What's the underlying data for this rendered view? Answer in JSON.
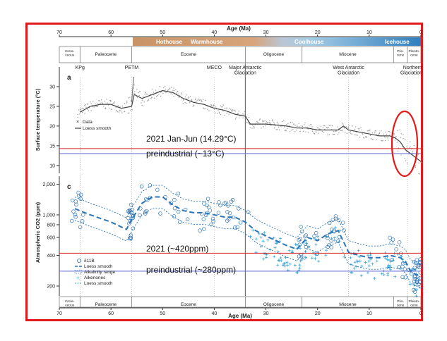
{
  "colors": {
    "frame": "#e21a1a",
    "ref_red": "#d81e1e",
    "ref_blue": "#5b63d6",
    "boron": "#2b74b8",
    "loess_c": "#2b74b8",
    "alk": "#39a6d8",
    "temp": "#555555"
  },
  "chart_data": [
    {
      "panel": "a",
      "type": "scatter",
      "xlabel": "Age (Ma)",
      "xlim": [
        70,
        0
      ],
      "x_ticks": [
        "70",
        "60",
        "50",
        "40",
        "30",
        "20",
        "10",
        "0"
      ],
      "ylabel": "Surface temperature (°C)",
      "ylim": [
        8,
        35
      ],
      "y_ticks": [
        "10",
        "15",
        "20",
        "25",
        "30"
      ],
      "climate_states": [
        "Hothouse",
        "Warmhouse",
        "Coolhouse",
        "Icehouse"
      ],
      "epochs_top": [
        "Creta-\nceous",
        "Paleocene",
        "Eocene",
        "Oligocene",
        "Miocene",
        "Plio-\ncene",
        "Pleisto-\ncene"
      ],
      "events": [
        "KPg",
        "PETM",
        "MECO",
        "Major Antarctic\nGlaciation",
        "West Antarctic\nGlaciation",
        "Northern\nGlaciation"
      ],
      "legend": [
        "Data",
        "Loess smooth"
      ],
      "series": [
        {
          "name": "Loess smooth",
          "x": [
            66,
            64,
            62,
            60,
            58,
            56,
            55.5,
            54,
            52,
            50,
            48,
            46,
            44,
            42,
            40,
            38,
            36,
            34,
            33,
            30,
            26,
            24,
            22,
            20,
            18,
            16,
            15,
            14,
            12,
            10,
            8,
            6,
            5,
            4,
            3,
            2,
            1,
            0
          ],
          "y": [
            23.5,
            25,
            25.5,
            25.5,
            24.5,
            25,
            28,
            27,
            28,
            29,
            28.5,
            27,
            26,
            25.5,
            24.5,
            24,
            23,
            22.5,
            20.5,
            20.5,
            20,
            19.5,
            19.5,
            19,
            19,
            19,
            20,
            19,
            18.5,
            18,
            17.5,
            17.5,
            17,
            16,
            14,
            13,
            12,
            11
          ]
        }
      ],
      "annotations": [
        {
          "label": "2021 Jan-Jun (14.29°C)",
          "y": 14.29
        },
        {
          "label": "preindustrial (~13°C)",
          "y": 13
        }
      ]
    },
    {
      "panel": "c",
      "type": "scatter",
      "xlabel": "Age (Ma)",
      "xlim": [
        70,
        0
      ],
      "x_ticks": [
        "70",
        "60",
        "50",
        "40",
        "30",
        "20",
        "10",
        "0"
      ],
      "ylabel": "Atmospheric CO2 (ppm)",
      "yscale": "log",
      "ylim": [
        160,
        2400
      ],
      "y_ticks": [
        "200",
        "400",
        "600",
        "800",
        "1,000",
        "2,000"
      ],
      "epochs_bottom": [
        "Creta-\nceous",
        "Paleocene",
        "Eocene",
        "Oligocene",
        "Miocene",
        "Plio-\ncene",
        "Pleisto-\ncene"
      ],
      "legend": [
        "δ11B",
        "Loess smooth",
        "Alkalinity range",
        "Alkenones",
        "Loess smooth"
      ],
      "series": [
        {
          "name": "Loess smooth",
          "x": [
            67,
            64,
            60,
            57,
            56,
            54,
            52,
            50,
            48,
            46,
            44,
            42,
            40,
            38,
            36,
            34,
            32,
            30,
            26,
            24,
            22,
            20,
            18,
            16,
            14,
            12,
            10,
            8,
            6,
            4,
            3,
            2,
            1,
            0
          ],
          "y": [
            1150,
            1000,
            850,
            720,
            900,
            1300,
            1500,
            1500,
            1250,
            1100,
            1050,
            1050,
            1000,
            950,
            950,
            850,
            700,
            620,
            500,
            460,
            600,
            560,
            650,
            700,
            430,
            400,
            380,
            380,
            400,
            380,
            350,
            280,
            260,
            250
          ]
        }
      ],
      "annotations": [
        {
          "label": "2021 (~420ppm)",
          "y": 420
        },
        {
          "label": "preindustrial (~280ppm)",
          "y": 280
        }
      ]
    }
  ]
}
